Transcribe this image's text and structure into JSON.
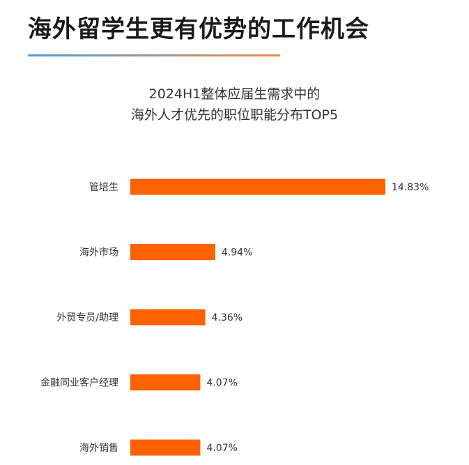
{
  "header": {
    "title": "海外留学生更有优势的工作机会",
    "underline_colors": [
      "#4a9fe0",
      "#f08a3c"
    ]
  },
  "colors": {
    "bar": "#ff6200"
  },
  "chart_data": {
    "type": "bar",
    "orientation": "horizontal",
    "title": [
      "2024H1整体应届生需求中的",
      "海外人才优先的职位职能分布TOP5"
    ],
    "xlabel": "",
    "ylabel": "",
    "categories": [
      "管培生",
      "海外市场",
      "外贸专员/助理",
      "金融同业客户经理",
      "海外销售"
    ],
    "values": [
      14.83,
      4.94,
      4.36,
      4.07,
      4.07
    ],
    "value_labels": [
      "14.83%",
      "4.94%",
      "4.36%",
      "4.07%",
      "4.07%"
    ],
    "unit": "%",
    "grid": false,
    "legend": "none"
  }
}
